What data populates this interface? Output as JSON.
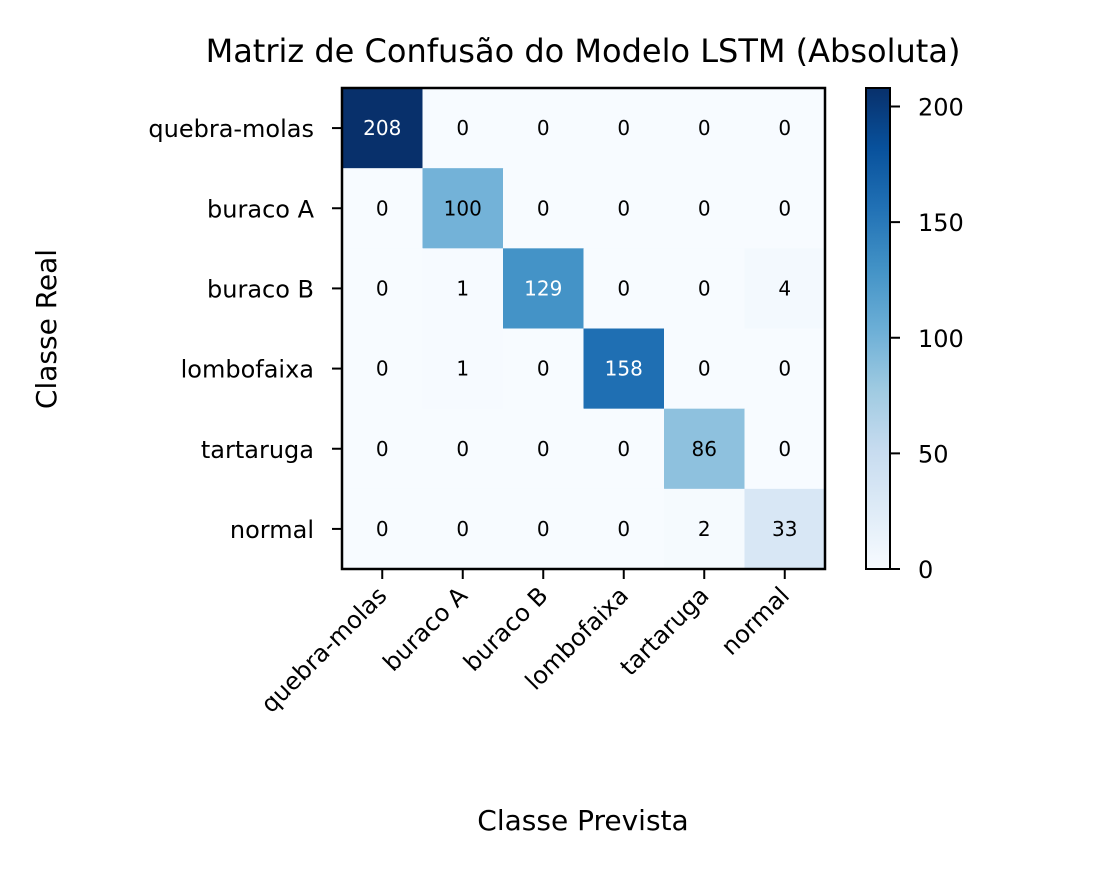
{
  "chart_data": {
    "type": "heatmap",
    "title": "Matriz de Confusão do Modelo LSTM (Absoluta)",
    "xlabel": "Classe Prevista",
    "ylabel": "Classe Real",
    "x_categories": [
      "quebra-molas",
      "buraco A",
      "buraco B",
      "lombofaixa",
      "tartaruga",
      "normal"
    ],
    "y_categories": [
      "quebra-molas",
      "buraco A",
      "buraco B",
      "lombofaixa",
      "tartaruga",
      "normal"
    ],
    "matrix": [
      [
        208,
        0,
        0,
        0,
        0,
        0
      ],
      [
        0,
        100,
        0,
        0,
        0,
        0
      ],
      [
        0,
        1,
        129,
        0,
        0,
        4
      ],
      [
        0,
        1,
        0,
        158,
        0,
        0
      ],
      [
        0,
        0,
        0,
        0,
        86,
        0
      ],
      [
        0,
        0,
        0,
        0,
        2,
        33
      ]
    ],
    "value_range": [
      0,
      208
    ],
    "colormap": "Blues",
    "colorbar": {
      "ticks": [
        0,
        50,
        100,
        150,
        200
      ],
      "placement": "right"
    },
    "grid": false
  }
}
